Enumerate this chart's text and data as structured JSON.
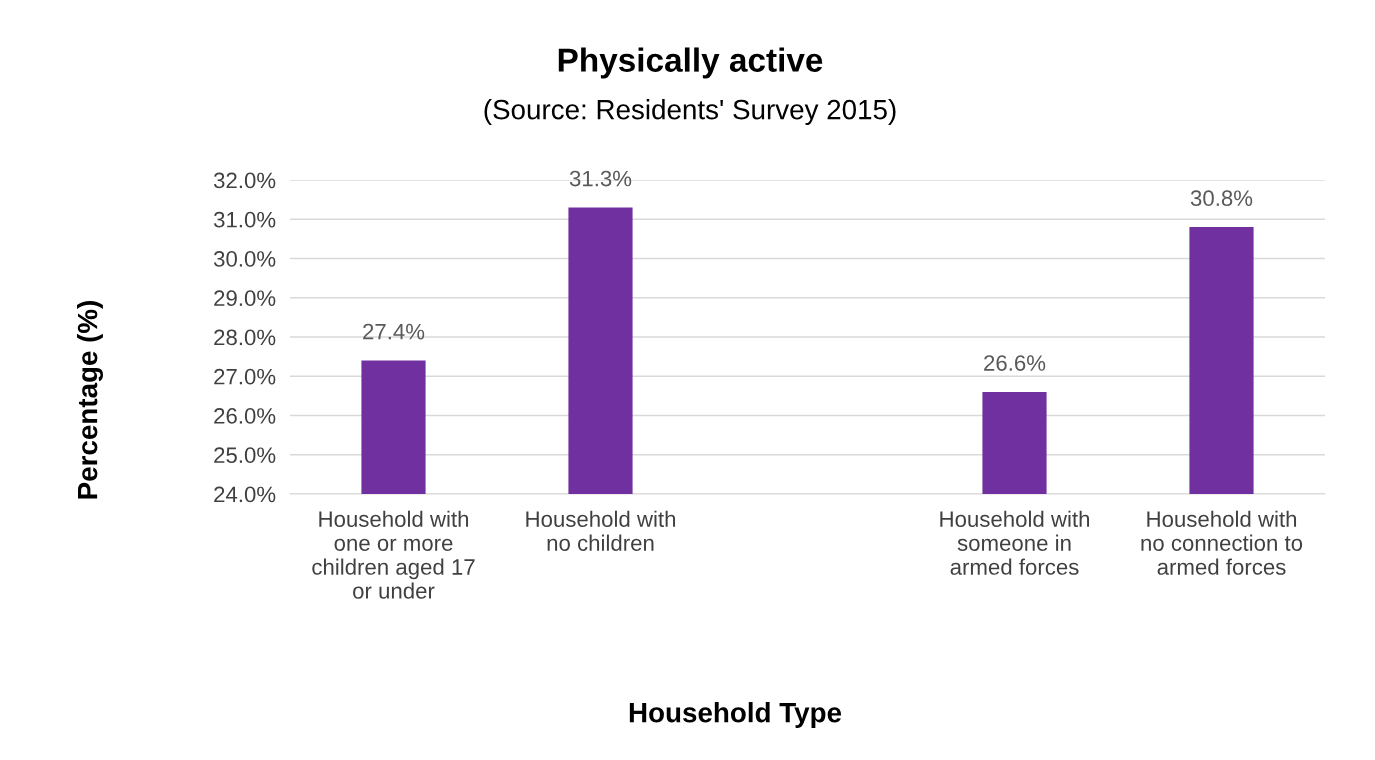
{
  "chart_data": {
    "type": "bar",
    "title": "Physically active",
    "subtitle": "(Source: Residents' Survey 2015)",
    "xlabel": "Household Type",
    "ylabel": "Percentage (%)",
    "categories": [
      "Household with\none or more\nchildren aged 17\nor under",
      "Household with\nno children",
      null,
      "Household with\nsomeone in\narmed forces",
      "Household with\nno connection to\narmed forces"
    ],
    "values": [
      27.4,
      31.3,
      null,
      26.6,
      30.8
    ],
    "value_labels": [
      "27.4%",
      "31.3%",
      null,
      "26.6%",
      "30.8%"
    ],
    "color": "#7030a0",
    "ylim": [
      24,
      32
    ],
    "yticks": [
      {
        "value": 24,
        "label": "24.0%"
      },
      {
        "value": 25,
        "label": "25.0%"
      },
      {
        "value": 26,
        "label": "26.0%"
      },
      {
        "value": 27,
        "label": "27.0%"
      },
      {
        "value": 28,
        "label": "28.0%"
      },
      {
        "value": 29,
        "label": "29.0%"
      },
      {
        "value": 30,
        "label": "30.0%"
      },
      {
        "value": 31,
        "label": "31.0%"
      },
      {
        "value": 32,
        "label": "32.0%"
      }
    ],
    "grid": "y",
    "legend": false
  }
}
